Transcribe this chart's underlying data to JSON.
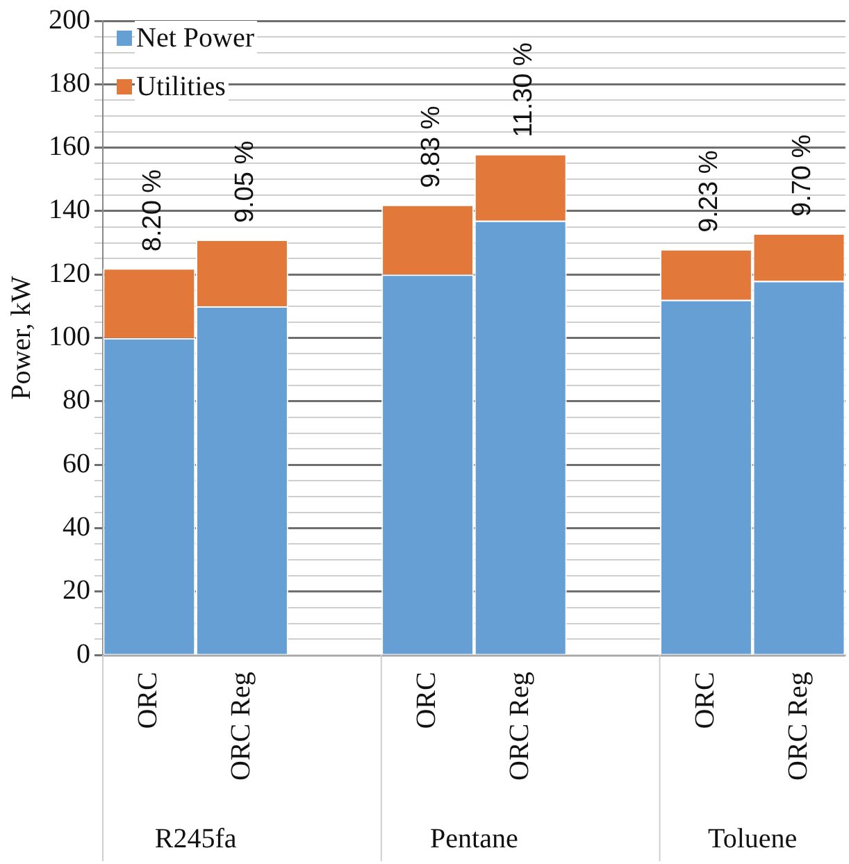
{
  "chart_data": {
    "type": "bar",
    "stacked": true,
    "ylabel": "Power, kW",
    "categories": [
      "ORC",
      "ORC Reg",
      null,
      "ORC",
      "ORC Reg",
      null,
      "ORC",
      "ORC Reg"
    ],
    "series": [
      {
        "name": "Net Power",
        "color": "#659fd4",
        "values": [
          100,
          110,
          null,
          120,
          137,
          null,
          112,
          118
        ]
      },
      {
        "name": "Utilities",
        "color": "#e2793a",
        "values": [
          22,
          21,
          null,
          22,
          21,
          null,
          16,
          15
        ]
      }
    ],
    "annotations": [
      "R245fa",
      "Pentane",
      "Toluene",
      "8.20 %",
      "9.05 %",
      "9.83 %",
      "11.30 %",
      "9.23 %",
      "9.70 %"
    ],
    "ylim": [
      0,
      200
    ],
    "yticks": [
      0,
      {
        "value": 5,
        "label": null
      },
      {
        "value": 10,
        "label": null
      },
      {
        "value": 15,
        "label": null
      },
      20,
      {
        "value": 25,
        "label": null
      },
      {
        "value": 30,
        "label": null
      },
      {
        "value": 35,
        "label": null
      },
      40,
      {
        "value": 45,
        "label": null
      },
      {
        "value": 50,
        "label": null
      },
      {
        "value": 55,
        "label": null
      },
      60,
      {
        "value": 65,
        "label": null
      },
      {
        "value": 70,
        "label": null
      },
      {
        "value": 75,
        "label": null
      },
      80,
      {
        "value": 85,
        "label": null
      },
      {
        "value": 90,
        "label": null
      },
      {
        "value": 95,
        "label": null
      },
      100,
      {
        "value": 105,
        "label": null
      },
      {
        "value": 110,
        "label": null
      },
      {
        "value": 115,
        "label": null
      },
      120,
      {
        "value": 125,
        "label": null
      },
      {
        "value": 130,
        "label": null
      },
      {
        "value": 135,
        "label": null
      },
      140,
      {
        "value": 145,
        "label": null
      },
      {
        "value": 150,
        "label": null
      },
      {
        "value": 155,
        "label": null
      },
      160,
      {
        "value": 165,
        "label": null
      },
      {
        "value": 170,
        "label": null
      },
      {
        "value": 175,
        "label": null
      },
      180,
      {
        "value": 185,
        "label": null
      },
      {
        "value": 190,
        "label": null
      },
      {
        "value": 195,
        "label": null
      },
      200
    ],
    "grid": "y",
    "legend": "top left"
  }
}
